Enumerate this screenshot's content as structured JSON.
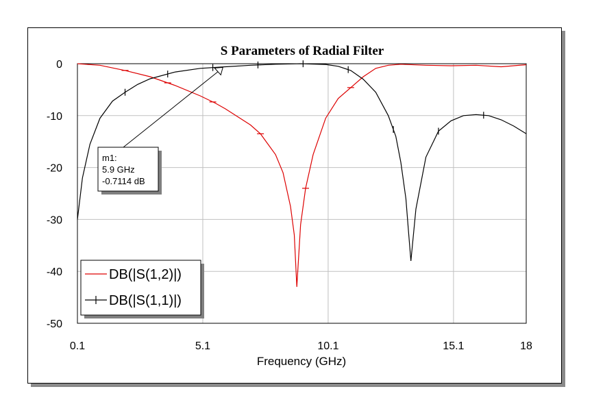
{
  "chart_data": {
    "type": "line",
    "title": "S Parameters of Radial Filter",
    "xlabel": "Frequency (GHz)",
    "ylabel": "",
    "xlim": [
      0.1,
      18
    ],
    "ylim": [
      -50,
      0
    ],
    "xticks": [
      0.1,
      5.1,
      10.1,
      15.1,
      18
    ],
    "xtick_labels": [
      "0.1",
      "5.1",
      "10.1",
      "15.1",
      "18"
    ],
    "yticks": [
      0,
      -10,
      -20,
      -30,
      -40,
      -50
    ],
    "ytick_labels": [
      "0",
      "-10",
      "-20",
      "-30",
      "-40",
      "-50"
    ],
    "grid": true,
    "legend_position": "bottom-left",
    "series": [
      {
        "name": "DB(|S(1,2)|)",
        "color": "#dd0000",
        "marker": "none",
        "x": [
          0.1,
          1,
          2,
          3,
          4,
          5,
          5.6,
          6,
          7,
          7.4,
          8,
          8.3,
          8.6,
          8.75,
          8.85,
          9,
          9.2,
          9.5,
          10,
          10.5,
          11,
          11.5,
          12,
          12.5,
          13,
          14,
          15,
          16,
          17,
          18
        ],
        "y": [
          0,
          -0.3,
          -1.3,
          -2.5,
          -4.2,
          -6.2,
          -7.6,
          -8.7,
          -11.8,
          -13.5,
          -17.5,
          -21,
          -27.5,
          -33,
          -43,
          -31,
          -24,
          -17.5,
          -10.5,
          -6.7,
          -4.6,
          -2.5,
          -0.9,
          -0.3,
          -0.1,
          -0.3,
          -0.4,
          -0.3,
          -0.6,
          -0.2
        ]
      },
      {
        "name": "DB(|S(1,1)|)",
        "color": "#000000",
        "marker": "tick",
        "x": [
          0.1,
          0.3,
          0.6,
          1,
          1.5,
          2,
          2.5,
          3,
          4,
          5,
          6,
          7,
          8,
          9,
          10,
          10.5,
          11,
          11.5,
          12,
          12.5,
          12.8,
          13,
          13.2,
          13.3,
          13.4,
          13.6,
          14,
          14.5,
          15,
          15.5,
          16,
          16.5,
          17,
          17.5,
          18
        ],
        "y": [
          -30,
          -22,
          -15.5,
          -10.5,
          -7.2,
          -5.5,
          -4,
          -2.9,
          -1.6,
          -0.9,
          -0.6,
          -0.3,
          -0.1,
          0,
          -0.15,
          -0.5,
          -1.3,
          -3,
          -5.5,
          -10,
          -14,
          -19,
          -26,
          -32,
          -38,
          -28,
          -18,
          -13,
          -11,
          -10,
          -9.8,
          -10,
          -10.8,
          -12,
          -13.5
        ]
      }
    ],
    "marker": {
      "name": "m1:",
      "freq": "5.9 GHz",
      "value": "-0.7114 dB",
      "x": 5.9,
      "y": -0.7114
    }
  }
}
